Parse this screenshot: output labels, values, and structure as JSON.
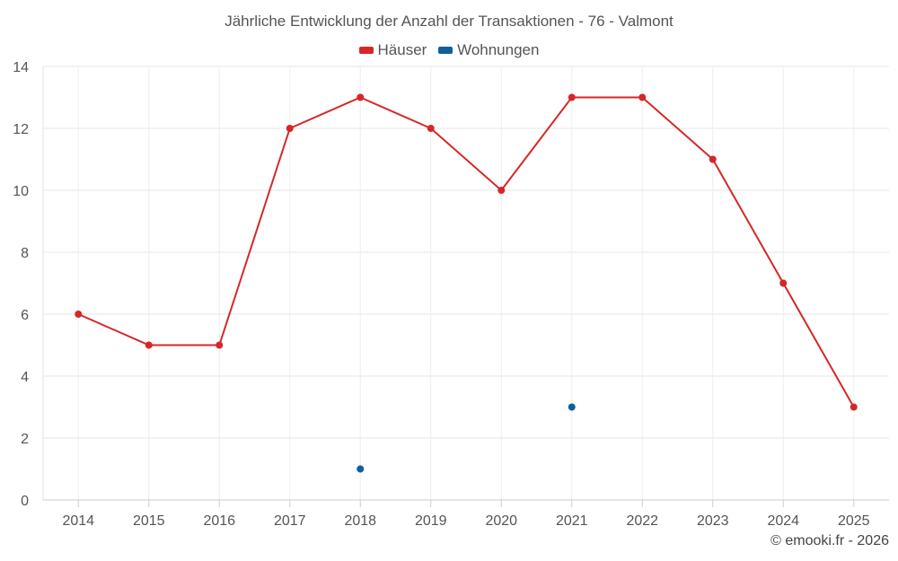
{
  "chart_data": {
    "type": "line",
    "title": "Jährliche Entwicklung der Anzahl der Transaktionen - 76 - Valmont",
    "categories": [
      "2014",
      "2015",
      "2016",
      "2017",
      "2018",
      "2019",
      "2020",
      "2021",
      "2022",
      "2023",
      "2024",
      "2025"
    ],
    "ylim": [
      0,
      14
    ],
    "yticks": [
      0,
      2,
      4,
      6,
      8,
      10,
      12,
      14
    ],
    "grid": true,
    "legend_position": "top-center",
    "series": [
      {
        "name": "Häuser",
        "color": "#d62728",
        "values": [
          6,
          5,
          5,
          12,
          13,
          12,
          10,
          13,
          13,
          11,
          7,
          3
        ]
      },
      {
        "name": "Wohnungen",
        "color": "#0f5f9b",
        "values": [
          null,
          null,
          null,
          null,
          1,
          null,
          null,
          3,
          null,
          null,
          null,
          null
        ]
      }
    ]
  },
  "credit": "© emooki.fr - 2026"
}
